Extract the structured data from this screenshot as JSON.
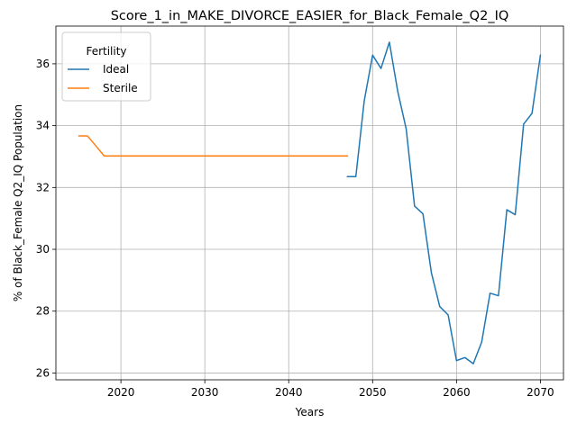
{
  "chart_data": {
    "type": "line",
    "title": "Score_1_in_MAKE_DIVORCE_EASIER_for_Black_Female_Q2_IQ",
    "xlabel": "Years",
    "ylabel": "% of Black_Female Q2_IQ Population",
    "xlim": [
      2012.25,
      2072.75
    ],
    "ylim": [
      25.78,
      37.22
    ],
    "xticks": [
      2020,
      2030,
      2040,
      2050,
      2060,
      2070
    ],
    "yticks": [
      26,
      28,
      30,
      32,
      34,
      36
    ],
    "grid": true,
    "legend": {
      "title": "Fertility",
      "placement": "top-left"
    },
    "series": [
      {
        "name": "Ideal",
        "color": "#1f77b4",
        "x": [
          2047,
          2048,
          2049,
          2050,
          2051,
          2052,
          2053,
          2054,
          2055,
          2056,
          2057,
          2058,
          2059,
          2060,
          2061,
          2062,
          2063,
          2064,
          2065,
          2066,
          2067,
          2068,
          2069,
          2070
        ],
        "y": [
          32.35,
          32.35,
          34.8,
          36.28,
          35.85,
          36.7,
          35.1,
          33.9,
          31.4,
          31.15,
          29.25,
          28.15,
          27.88,
          26.4,
          26.5,
          26.3,
          27.0,
          28.58,
          28.5,
          31.28,
          31.12,
          34.05,
          34.4,
          36.28
        ]
      },
      {
        "name": "Sterile",
        "color": "#ff7f0e",
        "x": [
          2015,
          2016,
          2017,
          2018,
          2019,
          2020,
          2021,
          2022,
          2023,
          2024,
          2025,
          2026,
          2027,
          2028,
          2029,
          2030,
          2031,
          2032,
          2033,
          2034,
          2035,
          2036,
          2037,
          2038,
          2039,
          2040,
          2041,
          2042,
          2043,
          2044,
          2045,
          2046,
          2047
        ],
        "y": [
          33.67,
          33.67,
          33.35,
          33.02,
          33.02,
          33.02,
          33.02,
          33.02,
          33.02,
          33.02,
          33.02,
          33.02,
          33.02,
          33.02,
          33.02,
          33.02,
          33.02,
          33.02,
          33.02,
          33.02,
          33.02,
          33.02,
          33.02,
          33.02,
          33.02,
          33.02,
          33.02,
          33.02,
          33.02,
          33.02,
          33.02,
          33.02,
          33.02
        ]
      }
    ]
  }
}
